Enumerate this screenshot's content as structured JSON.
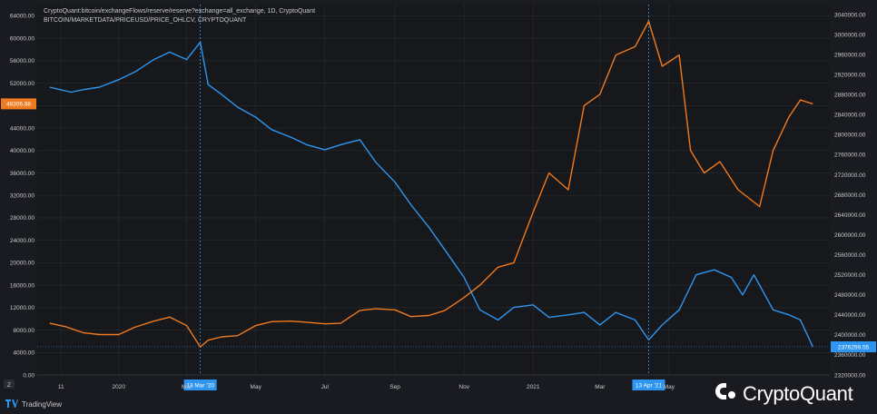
{
  "header": {
    "line1": "CryptoQuant:bitcoin/exchangeFlows/reserve/reserve?exchange=all_exchange, 1D, CryptoQuant",
    "line2": "BITCOIN/MARKETDATA/PRICEUSD/PRICE_OHLCV, CRYPTOQUANT"
  },
  "footer": {
    "tradingview": "TradingView",
    "brand": "CryptoQuant",
    "corner_button": "Z"
  },
  "colors": {
    "background": "#1a1b20",
    "reserve_line": "#2e96f0",
    "price_line": "#f07a1e",
    "grid": "#2a2c33"
  },
  "chart_data": {
    "type": "line",
    "x_ticks": [
      "11",
      "2020",
      "Mar",
      "May",
      "Jul",
      "Sep",
      "Nov",
      "2021",
      "Mar",
      "May"
    ],
    "x_markers": [
      {
        "label": "13 Mar '20",
        "date": "2020-03-13"
      },
      {
        "label": "13 Apr '21",
        "date": "2021-04-13"
      }
    ],
    "left_axis": {
      "ticks": [
        "64000.00",
        "60000.00",
        "56000.00",
        "52000.00",
        "48000.00",
        "44000.00",
        "40000.00",
        "36000.00",
        "32000.00",
        "28000.00",
        "24000.00",
        "20000.00",
        "16000.00",
        "12000.00",
        "8000.00",
        "4000.00",
        "0.00"
      ],
      "range": [
        0,
        66000
      ],
      "last_value_label": "48306.88"
    },
    "right_axis": {
      "ticks": [
        "3040000.00",
        "3000000.00",
        "2960000.00",
        "2920000.00",
        "2880000.00",
        "2840000.00",
        "2800000.00",
        "2760000.00",
        "2720000.00",
        "2680000.00",
        "2640000.00",
        "2600000.00",
        "2560000.00",
        "2520000.00",
        "2480000.00",
        "2440000.00",
        "2400000.00",
        "2360000.00",
        "2320000.00"
      ],
      "range": [
        2320000,
        3060000
      ],
      "last_value_label": "2376259.55"
    },
    "series": [
      {
        "name": "",
        "axis": "right",
        "color": "#2e96f0",
        "x": [
          "2019-11-01",
          "2019-11-10",
          "2019-11-20",
          "2019-12-01",
          "2019-12-15",
          "2020-01-01",
          "2020-01-15",
          "2020-02-01",
          "2020-02-15",
          "2020-03-01",
          "2020-03-13",
          "2020-03-20",
          "2020-04-01",
          "2020-04-15",
          "2020-05-01",
          "2020-05-15",
          "2020-06-01",
          "2020-06-15",
          "2020-07-01",
          "2020-07-15",
          "2020-08-01",
          "2020-08-15",
          "2020-09-01",
          "2020-09-15",
          "2020-10-01",
          "2020-10-15",
          "2020-11-01",
          "2020-11-15",
          "2020-12-01",
          "2020-12-15",
          "2021-01-01",
          "2021-01-15",
          "2021-02-01",
          "2021-02-15",
          "2021-03-01",
          "2021-03-15",
          "2021-04-01",
          "2021-04-13",
          "2021-04-25",
          "2021-05-10",
          "2021-05-25",
          "2021-06-10",
          "2021-06-25",
          "2021-07-05",
          "2021-07-15",
          "2021-08-01",
          "2021-08-15",
          "2021-08-25",
          "2021-09-05"
        ],
        "values": [
          2895000,
          2890000,
          2885000,
          2890000,
          2895000,
          2910000,
          2925000,
          2950000,
          2965000,
          2950000,
          2985000,
          2900000,
          2880000,
          2855000,
          2835000,
          2810000,
          2795000,
          2780000,
          2770000,
          2780000,
          2790000,
          2745000,
          2705000,
          2660000,
          2615000,
          2570000,
          2515000,
          2450000,
          2430000,
          2455000,
          2460000,
          2435000,
          2440000,
          2445000,
          2420000,
          2445000,
          2430000,
          2390000,
          2420000,
          2450000,
          2520000,
          2530000,
          2515000,
          2480000,
          2520000,
          2450000,
          2440000,
          2430000,
          2376259.55
        ]
      },
      {
        "name": "",
        "axis": "left",
        "color": "#f07a1e",
        "x": [
          "2019-11-01",
          "2019-11-15",
          "2019-12-01",
          "2019-12-15",
          "2020-01-01",
          "2020-01-15",
          "2020-02-01",
          "2020-02-15",
          "2020-03-01",
          "2020-03-13",
          "2020-03-20",
          "2020-04-01",
          "2020-04-15",
          "2020-05-01",
          "2020-05-15",
          "2020-06-01",
          "2020-06-15",
          "2020-07-01",
          "2020-07-15",
          "2020-08-01",
          "2020-08-15",
          "2020-09-01",
          "2020-09-15",
          "2020-10-01",
          "2020-10-15",
          "2020-11-01",
          "2020-11-15",
          "2020-12-01",
          "2020-12-15",
          "2021-01-01",
          "2021-01-15",
          "2021-02-01",
          "2021-02-15",
          "2021-03-01",
          "2021-03-15",
          "2021-04-01",
          "2021-04-13",
          "2021-04-25",
          "2021-05-10",
          "2021-05-20",
          "2021-06-01",
          "2021-06-15",
          "2021-07-01",
          "2021-07-20",
          "2021-08-01",
          "2021-08-15",
          "2021-08-25",
          "2021-09-05"
        ],
        "values": [
          9200,
          8600,
          7500,
          7200,
          7200,
          8500,
          9600,
          10300,
          8800,
          5000,
          6200,
          6800,
          7000,
          8800,
          9500,
          9600,
          9400,
          9100,
          9200,
          11500,
          11800,
          11600,
          10400,
          10600,
          11500,
          13800,
          16000,
          19200,
          20000,
          29000,
          36000,
          33000,
          48000,
          50000,
          57000,
          58500,
          63000,
          55000,
          57000,
          40000,
          36000,
          38000,
          33000,
          30000,
          40000,
          46000,
          49000,
          48306.88
        ]
      }
    ]
  }
}
